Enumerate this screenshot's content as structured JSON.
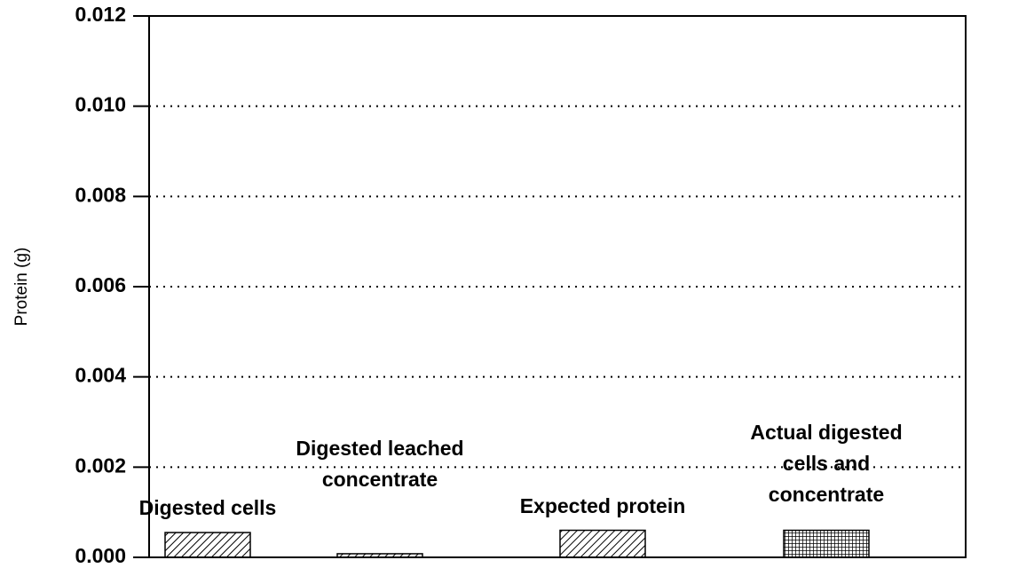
{
  "chart_data": {
    "type": "bar",
    "y_label": "Protein (g)",
    "categories": [
      "Digested cells",
      "Digested leached\nconcentrate",
      "Expected protein",
      "Actual digested\ncells and\nconcentrate"
    ],
    "values": [
      0.00055,
      8e-05,
      0.0006,
      0.0006
    ],
    "color": "#000000",
    "ylim": [
      0,
      0.012
    ],
    "yticks": [
      {
        "value": 0,
        "label": "0.000"
      },
      {
        "value": 0.002,
        "label": "0.002"
      },
      {
        "value": 0.004,
        "label": "0.004"
      },
      {
        "value": 0.006,
        "label": "0.006"
      },
      {
        "value": 0.008,
        "label": "0.008"
      },
      {
        "value": 0.01,
        "label": "0.010"
      },
      {
        "value": 0.012,
        "label": "0.012"
      }
    ],
    "grid": true
  }
}
